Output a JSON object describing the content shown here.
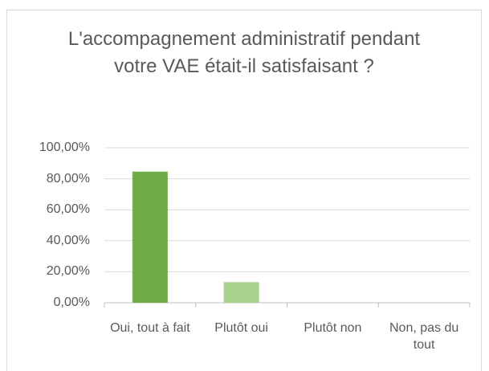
{
  "chart_data": {
    "type": "bar",
    "title": "L'accompagnement administratif pendant votre VAE était-il satisfaisant ?",
    "categories": [
      "Oui, tout à fait",
      "Plutôt oui",
      "Plutôt non",
      "Non, pas du tout"
    ],
    "values": [
      84.6,
      13.3,
      0,
      0
    ],
    "colors": [
      "#70ad47",
      "#a9d18e",
      "#a9d18e",
      "#a9d18e"
    ],
    "ylim": [
      0,
      100
    ],
    "yticks": [
      {
        "value": 0,
        "label": "0,00%"
      },
      {
        "value": 20,
        "label": "20,00%"
      },
      {
        "value": 40,
        "label": "40,00%"
      },
      {
        "value": 60,
        "label": "60,00%"
      },
      {
        "value": 80,
        "label": "80,00%"
      },
      {
        "value": 100,
        "label": "100,00%"
      }
    ],
    "grid": true
  }
}
